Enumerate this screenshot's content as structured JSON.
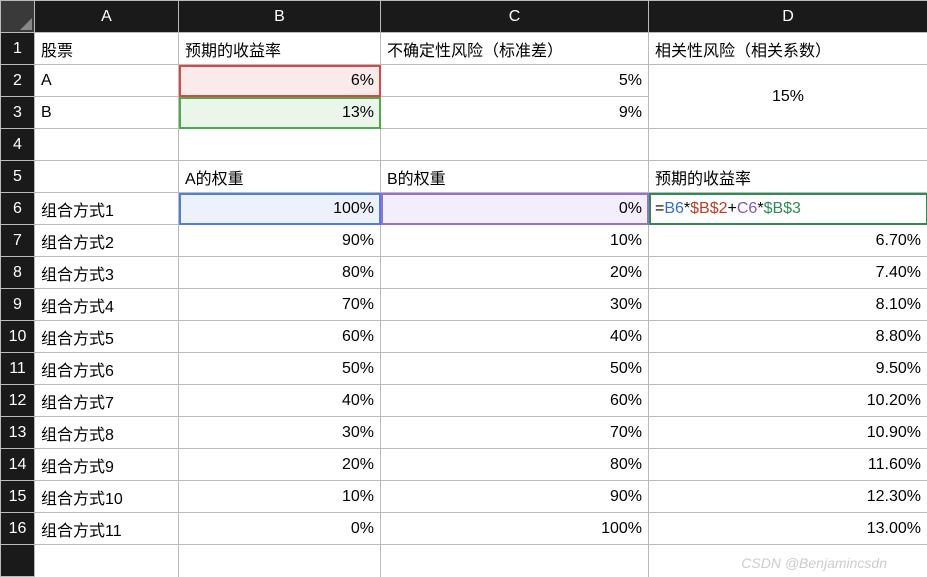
{
  "columns": [
    "A",
    "B",
    "C",
    "D"
  ],
  "colWidths": {
    "row": 34,
    "A": 144,
    "B": 202,
    "C": 268,
    "D": 279
  },
  "headers": {
    "r1": {
      "A": "股票",
      "B": "预期的收益率",
      "C": "不确定性风险（标准差）",
      "D": "相关性风险（相关系数）"
    }
  },
  "stocks": {
    "r2": {
      "A": "A",
      "B": "6%",
      "C": "5%"
    },
    "r3": {
      "A": "B",
      "B": "13%",
      "C": "9%"
    },
    "D_merged": "15%"
  },
  "section2": {
    "r5": {
      "B": "A的权重",
      "C": "B的权重",
      "D": "预期的收益率"
    }
  },
  "formulaCell": {
    "eq": "=",
    "b6": "B6",
    "star1": "*",
    "bs2": "$B$2",
    "plus": "+",
    "c6": "C6",
    "star2": "*",
    "bs3": "$B$3"
  },
  "rows": [
    {
      "n": "6",
      "A": "组合方式1",
      "B": "100%",
      "C": "0%",
      "D_formula": true
    },
    {
      "n": "7",
      "A": "组合方式2",
      "B": "90%",
      "C": "10%",
      "D": "6.70%"
    },
    {
      "n": "8",
      "A": "组合方式3",
      "B": "80%",
      "C": "20%",
      "D": "7.40%"
    },
    {
      "n": "9",
      "A": "组合方式4",
      "B": "70%",
      "C": "30%",
      "D": "8.10%"
    },
    {
      "n": "10",
      "A": "组合方式5",
      "B": "60%",
      "C": "40%",
      "D": "8.80%"
    },
    {
      "n": "11",
      "A": "组合方式6",
      "B": "50%",
      "C": "50%",
      "D": "9.50%"
    },
    {
      "n": "12",
      "A": "组合方式7",
      "B": "40%",
      "C": "60%",
      "D": "10.20%"
    },
    {
      "n": "13",
      "A": "组合方式8",
      "B": "30%",
      "C": "70%",
      "D": "10.90%"
    },
    {
      "n": "14",
      "A": "组合方式9",
      "B": "20%",
      "C": "80%",
      "D": "11.60%"
    },
    {
      "n": "15",
      "A": "组合方式10",
      "B": "10%",
      "C": "90%",
      "D": "12.30%"
    },
    {
      "n": "16",
      "A": "组合方式11",
      "B": "0%",
      "C": "100%",
      "D": "13.00%"
    }
  ],
  "watermark": "CSDN @Benjamincsdn"
}
